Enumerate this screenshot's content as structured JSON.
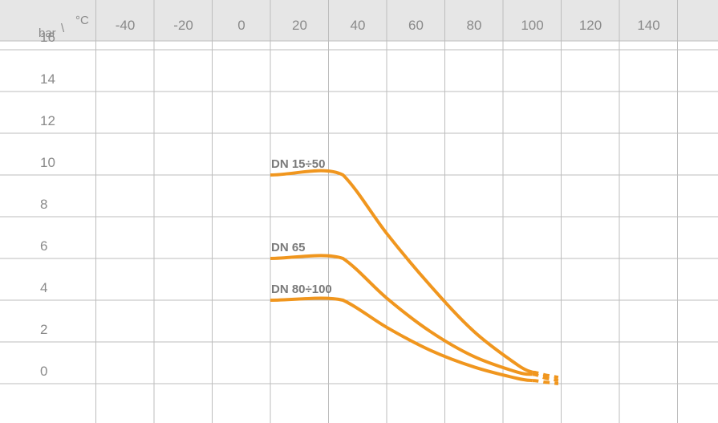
{
  "chart_data": {
    "type": "line",
    "corner_label": {
      "y_unit": "bar",
      "separator": "\\",
      "x_unit": "°C"
    },
    "x_ticks": [
      "-40",
      "-20",
      "0",
      "20",
      "40",
      "60",
      "80",
      "100",
      "120",
      "140"
    ],
    "y_ticks": [
      "16",
      "14",
      "12",
      "10",
      "8",
      "6",
      "4",
      "2",
      "0"
    ],
    "xlim": [
      -60,
      160
    ],
    "ylim": [
      0,
      18
    ],
    "grid": true,
    "color": "#f0961e",
    "series": [
      {
        "name": "DN 15÷50",
        "points": [
          [
            0,
            10
          ],
          [
            25,
            10
          ],
          [
            40,
            7.2
          ],
          [
            55,
            4.7
          ],
          [
            70,
            2.5
          ],
          [
            85,
            0.9
          ],
          [
            90,
            0.55
          ]
        ],
        "dashed": [
          [
            90,
            0.55
          ],
          [
            95,
            0.4
          ],
          [
            99,
            0.3
          ]
        ]
      },
      {
        "name": "DN 65",
        "points": [
          [
            0,
            6
          ],
          [
            25,
            6
          ],
          [
            40,
            4.1
          ],
          [
            55,
            2.5
          ],
          [
            70,
            1.3
          ],
          [
            85,
            0.55
          ],
          [
            90,
            0.45
          ]
        ],
        "dashed": [
          [
            90,
            0.45
          ],
          [
            95,
            0.25
          ],
          [
            99,
            0.15
          ]
        ]
      },
      {
        "name": "DN 80÷100",
        "points": [
          [
            0,
            4
          ],
          [
            25,
            4
          ],
          [
            40,
            2.7
          ],
          [
            55,
            1.6
          ],
          [
            70,
            0.8
          ],
          [
            85,
            0.25
          ],
          [
            90,
            0.15
          ]
        ],
        "dashed": [
          [
            90,
            0.15
          ],
          [
            95,
            0.06
          ],
          [
            99,
            0.0
          ]
        ]
      }
    ]
  }
}
